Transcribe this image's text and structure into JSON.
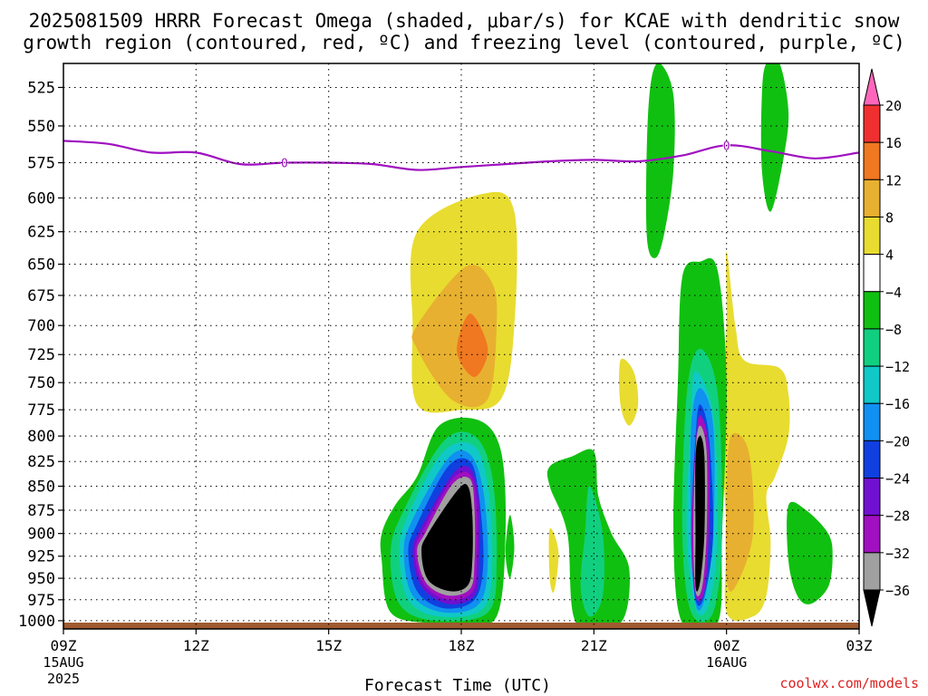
{
  "title_line1": "2025081509 HRRR Forecast Omega (shaded, μbar/s) for KCAE with dendritic snow",
  "title_line2": "growth region (contoured, red, ºC) and freezing level (contoured, purple, ºC)",
  "credit": "coolwx.com/models",
  "chart_data": {
    "type": "heatmap",
    "xlabel": "Forecast Time (UTC)",
    "x_ticks": [
      {
        "hours": 0,
        "label": "09Z",
        "sub1": "15AUG",
        "sub2": "2025"
      },
      {
        "hours": 3,
        "label": "12Z",
        "sub1": "",
        "sub2": ""
      },
      {
        "hours": 6,
        "label": "15Z",
        "sub1": "",
        "sub2": ""
      },
      {
        "hours": 9,
        "label": "18Z",
        "sub1": "",
        "sub2": ""
      },
      {
        "hours": 12,
        "label": "21Z",
        "sub1": "",
        "sub2": ""
      },
      {
        "hours": 15,
        "label": "00Z",
        "sub1": "16AUG",
        "sub2": ""
      },
      {
        "hours": 18,
        "label": "03Z",
        "sub1": "",
        "sub2": ""
      }
    ],
    "y_ticks": [
      525,
      550,
      575,
      600,
      625,
      650,
      675,
      700,
      725,
      750,
      775,
      800,
      825,
      850,
      875,
      900,
      925,
      950,
      975,
      1000
    ],
    "y_range": [
      510,
      1010
    ],
    "y_axis": "log-pressure, inverted",
    "grid": true,
    "colorbar": {
      "labels": [
        "20",
        "16",
        "12",
        "8",
        "4",
        "−4",
        "−8",
        "−12",
        "−16",
        "−20",
        "−24",
        "−28",
        "−32",
        "−36"
      ],
      "colors": [
        "#ff66bb",
        "#f03030",
        "#f07820",
        "#e8b030",
        "#e8dc30",
        "#ffffff",
        "#10c010",
        "#10d080",
        "#10c8c8",
        "#1090f0",
        "#1040e0",
        "#7010d0",
        "#a010c0",
        "#a0a0a0",
        "#000000"
      ]
    },
    "freezing_level": {
      "color": "#a010c0",
      "label": "0",
      "points": [
        [
          0,
          560
        ],
        [
          1,
          562
        ],
        [
          2,
          568
        ],
        [
          3,
          568
        ],
        [
          4,
          576
        ],
        [
          5,
          575
        ],
        [
          6,
          575
        ],
        [
          7,
          576
        ],
        [
          8,
          580
        ],
        [
          9,
          578
        ],
        [
          10,
          576
        ],
        [
          11,
          574
        ],
        [
          12,
          573
        ],
        [
          13,
          574
        ],
        [
          14,
          570
        ],
        [
          15,
          563
        ],
        [
          16,
          567
        ],
        [
          17,
          572
        ],
        [
          18,
          568
        ]
      ]
    },
    "omega_regions": [
      {
        "band": "4",
        "color": "#e8dc30",
        "points": [
          [
            8.0,
            625
          ],
          [
            9.5,
            597
          ],
          [
            10.2,
            610
          ],
          [
            10.2,
            700
          ],
          [
            9.9,
            765
          ],
          [
            9.0,
            775
          ],
          [
            8.0,
            770
          ],
          [
            7.9,
            700
          ]
        ]
      },
      {
        "band": "8",
        "color": "#e8b030",
        "points": [
          [
            9.1,
            652
          ],
          [
            9.7,
            665
          ],
          [
            9.8,
            700
          ],
          [
            9.6,
            765
          ],
          [
            8.8,
            766
          ],
          [
            8.0,
            720
          ],
          [
            8.0,
            700
          ]
        ]
      },
      {
        "band": "12",
        "color": "#f07820",
        "points": [
          [
            9.2,
            690
          ],
          [
            9.6,
            720
          ],
          [
            9.3,
            745
          ],
          [
            8.9,
            722
          ]
        ]
      },
      {
        "band": "4",
        "color": "#e8dc30",
        "points": [
          [
            15.0,
            640
          ],
          [
            15.2,
            700
          ],
          [
            15.4,
            730
          ],
          [
            16.2,
            737
          ],
          [
            16.4,
            760
          ],
          [
            16.4,
            800
          ],
          [
            16.1,
            840
          ],
          [
            15.9,
            860
          ],
          [
            16.0,
            910
          ],
          [
            15.9,
            970
          ],
          [
            15.6,
            995
          ],
          [
            15.0,
            990
          ],
          [
            15.0,
            900
          ],
          [
            14.9,
            800
          ],
          [
            15.0,
            700
          ]
        ]
      },
      {
        "band": "8",
        "color": "#e8b030",
        "points": [
          [
            15.1,
            800
          ],
          [
            15.5,
            815
          ],
          [
            15.6,
            900
          ],
          [
            15.2,
            960
          ],
          [
            15.0,
            950
          ],
          [
            15.0,
            860
          ]
        ]
      },
      {
        "band": "4",
        "color": "#e8dc30",
        "points": [
          [
            12.6,
            730
          ],
          [
            12.9,
            740
          ],
          [
            13.0,
            770
          ],
          [
            12.8,
            790
          ],
          [
            12.6,
            770
          ]
        ]
      },
      {
        "band": "4",
        "color": "#e8dc30",
        "points": [
          [
            11.0,
            895
          ],
          [
            11.2,
            920
          ],
          [
            11.1,
            965
          ],
          [
            11.0,
            950
          ]
        ]
      },
      {
        "band": "-4",
        "color": "#10c010",
        "points": [
          [
            13.5,
            510
          ],
          [
            13.8,
            530
          ],
          [
            13.8,
            580
          ],
          [
            13.6,
            625
          ],
          [
            13.4,
            645
          ],
          [
            13.2,
            630
          ],
          [
            13.2,
            560
          ],
          [
            13.3,
            520
          ]
        ]
      },
      {
        "band": "-4",
        "color": "#10c010",
        "points": [
          [
            16.2,
            510
          ],
          [
            16.4,
            540
          ],
          [
            16.3,
            570
          ],
          [
            16.0,
            610
          ],
          [
            15.8,
            580
          ],
          [
            15.8,
            530
          ],
          [
            15.9,
            510
          ]
        ]
      },
      {
        "band": "-4",
        "color": "#10c010",
        "points": [
          [
            14.4,
            648
          ],
          [
            14.8,
            655
          ],
          [
            15.0,
            750
          ],
          [
            14.9,
            900
          ],
          [
            14.8,
            1003
          ],
          [
            14.0,
            1003
          ],
          [
            13.8,
            900
          ],
          [
            13.9,
            750
          ],
          [
            14.0,
            660
          ]
        ]
      },
      {
        "band": "-4",
        "color": "#10c010",
        "points": [
          [
            8.5,
            790
          ],
          [
            9.4,
            785
          ],
          [
            9.9,
            815
          ],
          [
            10.0,
            900
          ],
          [
            9.8,
            995
          ],
          [
            9.0,
            1003
          ],
          [
            8.3,
            1003
          ],
          [
            7.4,
            990
          ],
          [
            7.2,
            930
          ],
          [
            7.2,
            900
          ],
          [
            7.5,
            870
          ],
          [
            8.0,
            840
          ]
        ]
      },
      {
        "band": "-4",
        "color": "#10c010",
        "points": [
          [
            11.5,
            820
          ],
          [
            12.0,
            815
          ],
          [
            12.1,
            860
          ],
          [
            12.4,
            900
          ],
          [
            12.8,
            940
          ],
          [
            12.6,
            1003
          ],
          [
            11.6,
            1003
          ],
          [
            11.4,
            900
          ],
          [
            11.0,
            850
          ],
          [
            11.0,
            830
          ]
        ]
      },
      {
        "band": "-4",
        "color": "#10c010",
        "points": [
          [
            16.4,
            870
          ],
          [
            16.8,
            875
          ],
          [
            17.3,
            900
          ],
          [
            17.4,
            925
          ],
          [
            17.3,
            960
          ],
          [
            16.9,
            980
          ],
          [
            16.6,
            970
          ],
          [
            16.4,
            930
          ]
        ]
      },
      {
        "band": "-4",
        "color": "#10c010",
        "points": [
          [
            10.1,
            880
          ],
          [
            10.2,
            915
          ],
          [
            10.1,
            950
          ],
          [
            10.0,
            920
          ]
        ]
      },
      {
        "band": "-8",
        "color": "#10d080",
        "points": [
          [
            11.9,
            850
          ],
          [
            12.2,
            900
          ],
          [
            12.2,
            970
          ],
          [
            11.9,
            995
          ],
          [
            11.7,
            960
          ],
          [
            11.8,
            900
          ]
        ]
      },
      {
        "band": "-8",
        "color": "#10d080",
        "points": [
          [
            14.4,
            720
          ],
          [
            14.8,
            760
          ],
          [
            14.9,
            900
          ],
          [
            14.7,
            990
          ],
          [
            14.2,
            990
          ],
          [
            14.0,
            900
          ],
          [
            14.1,
            760
          ]
        ]
      },
      {
        "band": "-8",
        "color": "#10d080",
        "points": [
          [
            8.6,
            805
          ],
          [
            9.3,
            800
          ],
          [
            9.7,
            840
          ],
          [
            9.8,
            930
          ],
          [
            9.6,
            990
          ],
          [
            8.4,
            1000
          ],
          [
            7.6,
            980
          ],
          [
            7.4,
            920
          ],
          [
            7.7,
            875
          ]
        ]
      },
      {
        "band": "-12",
        "color": "#10c8c8",
        "points": [
          [
            8.6,
            815
          ],
          [
            9.3,
            810
          ],
          [
            9.6,
            850
          ],
          [
            9.7,
            930
          ],
          [
            9.5,
            985
          ],
          [
            8.5,
            995
          ],
          [
            7.8,
            975
          ],
          [
            7.6,
            920
          ],
          [
            7.8,
            880
          ]
        ]
      },
      {
        "band": "-12",
        "color": "#10c8c8",
        "points": [
          [
            14.3,
            740
          ],
          [
            14.7,
            780
          ],
          [
            14.8,
            900
          ],
          [
            14.6,
            980
          ],
          [
            14.3,
            985
          ],
          [
            14.1,
            900
          ],
          [
            14.2,
            780
          ]
        ]
      },
      {
        "band": "-16",
        "color": "#1090f0",
        "points": [
          [
            8.7,
            822
          ],
          [
            9.2,
            818
          ],
          [
            9.5,
            855
          ],
          [
            9.6,
            930
          ],
          [
            9.4,
            980
          ],
          [
            8.6,
            990
          ],
          [
            7.9,
            970
          ],
          [
            7.7,
            920
          ],
          [
            7.9,
            885
          ]
        ]
      },
      {
        "band": "-16",
        "color": "#1090f0",
        "points": [
          [
            14.4,
            755
          ],
          [
            14.7,
            790
          ],
          [
            14.7,
            900
          ],
          [
            14.5,
            975
          ],
          [
            14.3,
            980
          ],
          [
            14.2,
            900
          ],
          [
            14.2,
            790
          ]
        ]
      },
      {
        "band": "-20",
        "color": "#1040e0",
        "points": [
          [
            8.7,
            830
          ],
          [
            9.2,
            825
          ],
          [
            9.4,
            860
          ],
          [
            9.5,
            930
          ],
          [
            9.3,
            975
          ],
          [
            8.6,
            985
          ],
          [
            8.0,
            965
          ],
          [
            7.8,
            920
          ],
          [
            8.0,
            890
          ]
        ]
      },
      {
        "band": "-20",
        "color": "#1040e0",
        "points": [
          [
            14.4,
            770
          ],
          [
            14.6,
            800
          ],
          [
            14.7,
            900
          ],
          [
            14.5,
            970
          ],
          [
            14.3,
            975
          ],
          [
            14.2,
            900
          ],
          [
            14.3,
            800
          ]
        ]
      },
      {
        "band": "-24",
        "color": "#7010d0",
        "points": [
          [
            8.8,
            838
          ],
          [
            9.2,
            832
          ],
          [
            9.4,
            865
          ],
          [
            9.4,
            930
          ],
          [
            9.3,
            970
          ],
          [
            8.7,
            980
          ],
          [
            8.1,
            960
          ],
          [
            7.9,
            920
          ],
          [
            8.1,
            893
          ]
        ]
      },
      {
        "band": "-28",
        "color": "#a010c0",
        "points": [
          [
            8.8,
            843
          ],
          [
            9.2,
            838
          ],
          [
            9.35,
            870
          ],
          [
            9.35,
            930
          ],
          [
            9.25,
            966
          ],
          [
            8.7,
            975
          ],
          [
            8.15,
            957
          ],
          [
            7.95,
            920
          ],
          [
            8.15,
            895
          ]
        ]
      },
      {
        "band": "-28",
        "color": "#a010c0",
        "points": [
          [
            14.4,
            780
          ],
          [
            14.6,
            810
          ],
          [
            14.6,
            900
          ],
          [
            14.5,
            965
          ],
          [
            14.3,
            970
          ],
          [
            14.2,
            900
          ],
          [
            14.3,
            810
          ]
        ]
      },
      {
        "band": "-32",
        "color": "#a0a0a0",
        "points": [
          [
            8.8,
            848
          ],
          [
            9.2,
            843
          ],
          [
            9.3,
            875
          ],
          [
            9.3,
            930
          ],
          [
            9.2,
            962
          ],
          [
            8.7,
            970
          ],
          [
            8.2,
            955
          ],
          [
            8.0,
            920
          ],
          [
            8.2,
            898
          ]
        ]
      },
      {
        "band": "-32",
        "color": "#a0a0a0",
        "points": [
          [
            14.4,
            790
          ],
          [
            14.55,
            815
          ],
          [
            14.55,
            900
          ],
          [
            14.45,
            960
          ],
          [
            14.3,
            965
          ],
          [
            14.25,
            900
          ],
          [
            14.3,
            815
          ]
        ]
      },
      {
        "band": "-36",
        "color": "#000000",
        "points": [
          [
            8.9,
            855
          ],
          [
            9.15,
            850
          ],
          [
            9.25,
            880
          ],
          [
            9.25,
            930
          ],
          [
            9.15,
            958
          ],
          [
            8.75,
            965
          ],
          [
            8.25,
            952
          ],
          [
            8.1,
            920
          ],
          [
            8.25,
            900
          ]
        ]
      },
      {
        "band": "-36",
        "color": "#000000",
        "points": [
          [
            14.4,
            800
          ],
          [
            14.5,
            820
          ],
          [
            14.5,
            900
          ],
          [
            14.4,
            955
          ],
          [
            14.3,
            960
          ],
          [
            14.3,
            900
          ],
          [
            14.3,
            820
          ]
        ]
      }
    ],
    "surface_band_color": "#a05a30"
  }
}
